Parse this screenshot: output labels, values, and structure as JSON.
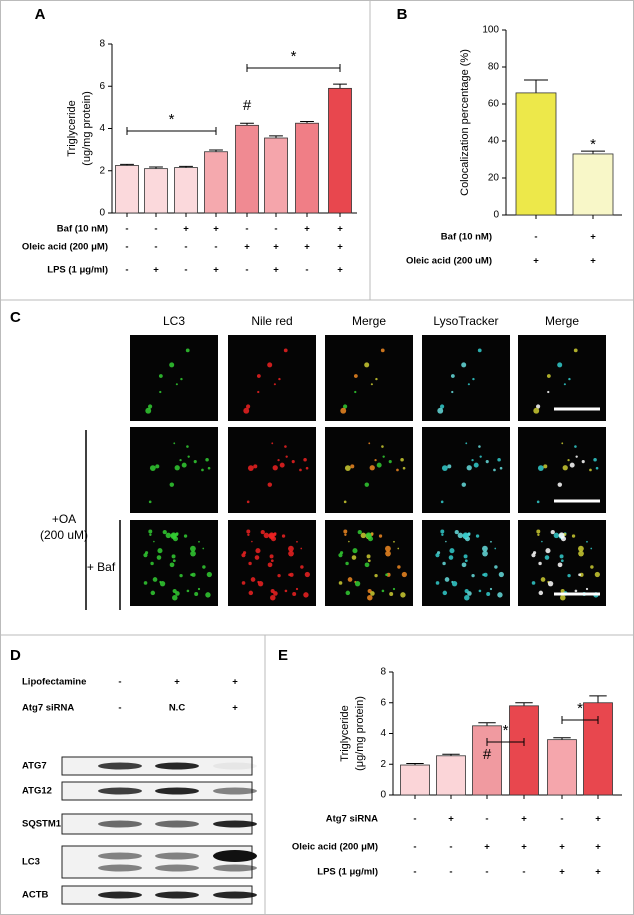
{
  "chart_data": [
    {
      "type": "bar",
      "panel": "A",
      "y_label": [
        "Triglyceride",
        "(ug/mg protein)"
      ],
      "values": [
        2.25,
        2.1,
        2.15,
        2.9,
        4.15,
        3.55,
        4.25,
        5.9
      ],
      "errors": [
        0.05,
        0.08,
        0.06,
        0.08,
        0.1,
        0.1,
        0.08,
        0.2
      ],
      "colors": [
        "#fbd9dc",
        "#fbd9dc",
        "#fbd9dc",
        "#f5a9ae",
        "#f08a92",
        "#f5a5ab",
        "#f07e86",
        "#e8474e"
      ],
      "ylim": [
        0,
        8
      ],
      "yticks": [
        0,
        2,
        4,
        6,
        8
      ],
      "conditions": [
        {
          "label": "Baf (10 nM)",
          "marks": [
            "-",
            "-",
            "+",
            "+",
            "-",
            "-",
            "+",
            "+"
          ]
        },
        {
          "label": "Oleic acid (200 μM)",
          "marks": [
            "-",
            "-",
            "-",
            "-",
            "+",
            "+",
            "+",
            "+"
          ]
        },
        {
          "label": "LPS (1 μg/ml)",
          "marks": [
            "-",
            "+",
            "-",
            "+",
            "-",
            "+",
            "-",
            "+"
          ]
        }
      ],
      "annotations": [
        "*",
        "#",
        "*"
      ]
    },
    {
      "type": "bar",
      "panel": "B",
      "y_label": [
        "Colocalization percentage (%)"
      ],
      "values": [
        66,
        33
      ],
      "errors": [
        7,
        1.5
      ],
      "colors": [
        "#ede84a",
        "#f8f7c8"
      ],
      "ylim": [
        0,
        100
      ],
      "yticks": [
        0,
        20,
        40,
        60,
        80,
        100
      ],
      "conditions": [
        {
          "label": "Baf (10 nM)",
          "marks": [
            "-",
            "+"
          ]
        },
        {
          "label": "Oleic acid (200 uM)",
          "marks": [
            "+",
            "+"
          ]
        }
      ],
      "annotations": [
        "*"
      ]
    },
    {
      "type": "bar",
      "panel": "E",
      "y_label": [
        "Triglyceride",
        "(μg/mg protein)"
      ],
      "values": [
        1.95,
        2.55,
        4.5,
        5.8,
        3.6,
        6.0
      ],
      "errors": [
        0.1,
        0.1,
        0.2,
        0.2,
        0.12,
        0.45
      ],
      "colors": [
        "#fbd5d8",
        "#fbd5d8",
        "#f09aa0",
        "#e8474e",
        "#f5a6ac",
        "#e8474e"
      ],
      "ylim": [
        0,
        8
      ],
      "yticks": [
        0,
        2,
        4,
        6,
        8
      ],
      "conditions": [
        {
          "label": "Atg7 siRNA",
          "marks": [
            "-",
            "+",
            "-",
            "+",
            "-",
            "+"
          ]
        },
        {
          "label": "Oleic acid (200 μM)",
          "marks": [
            "-",
            "-",
            "+",
            "+",
            "+",
            "+"
          ]
        },
        {
          "label": "LPS (1 μg/ml)",
          "marks": [
            "-",
            "-",
            "-",
            "-",
            "+",
            "+"
          ]
        }
      ],
      "annotations": [
        "#",
        "*",
        "*"
      ]
    }
  ],
  "panel_c": {
    "panel": "C",
    "columns": [
      "LC3",
      "Nile red",
      "Merge",
      "LysoTracker",
      "Merge"
    ],
    "group_label": [
      "+OA",
      "(200 uM)"
    ],
    "sub_label": "+ Baf"
  },
  "panel_d": {
    "panel": "D",
    "conditions": [
      {
        "label": "Lipofectamine",
        "marks": [
          "-",
          "+",
          "+"
        ]
      },
      {
        "label": "Atg7 siRNA",
        "marks": [
          "-",
          "N.C",
          "+"
        ]
      }
    ],
    "blots": [
      "ATG7",
      "ATG12",
      "SQSTM1",
      "LC3",
      "ACTB"
    ]
  }
}
